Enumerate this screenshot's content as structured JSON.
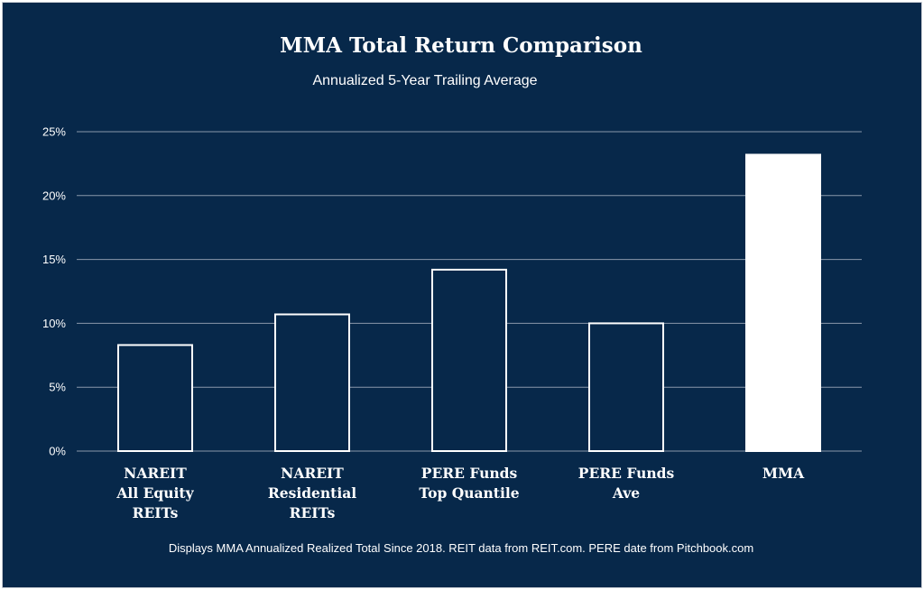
{
  "chart_data": {
    "type": "bar",
    "title": "MMA Total Return Comparison",
    "subtitle": "Annualized 5-Year Trailing Average",
    "categories": [
      [
        "NAREIT",
        "All Equity",
        "REITs"
      ],
      [
        "NAREIT",
        "Residential",
        "REITs"
      ],
      [
        "PERE Funds",
        "Top Quantile"
      ],
      [
        "PERE Funds",
        "Ave"
      ],
      [
        "MMA"
      ]
    ],
    "values": [
      8.3,
      10.7,
      14.2,
      10.0,
      23.2
    ],
    "highlight_index": 4,
    "ylim": [
      0,
      25
    ],
    "yticks": [
      0,
      5,
      10,
      15,
      20,
      25
    ],
    "ytick_labels": [
      "0%",
      "5%",
      "10%",
      "15%",
      "20%",
      "25%"
    ],
    "xlabel": "",
    "ylabel": "",
    "grid": true,
    "footnote": "Displays MMA Annualized Realized Total Since 2018. REIT data from REIT.com. PERE date from Pitchbook.com"
  },
  "colors": {
    "background": "#07284a",
    "bar_outline": "#ffffff",
    "highlight_fill": "#ffffff",
    "text": "#ffffff",
    "grid": "#8a98ab"
  }
}
